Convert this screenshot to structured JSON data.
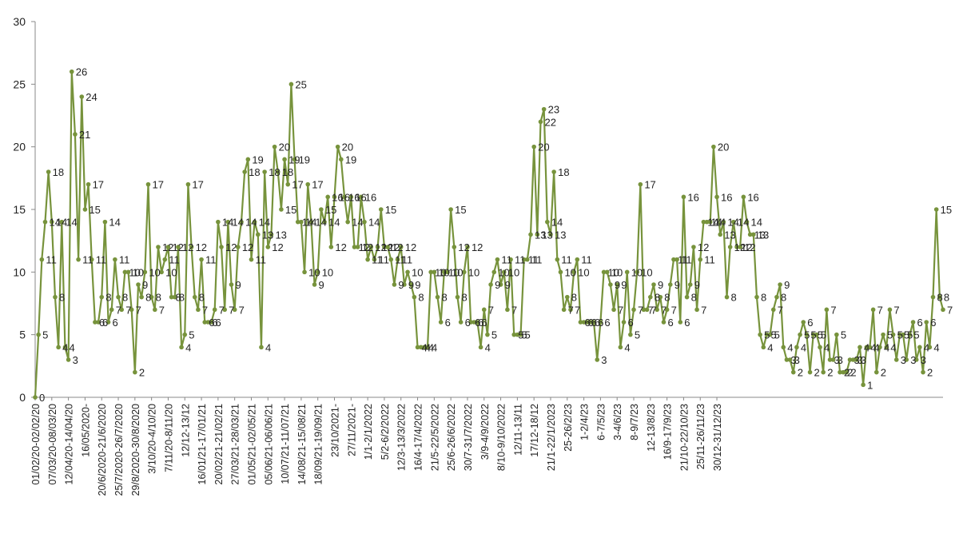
{
  "chart_data": {
    "type": "line",
    "title": "",
    "xlabel": "",
    "ylabel": "",
    "ylim": [
      0,
      30
    ],
    "yticks": [
      "0",
      "5",
      "10",
      "15",
      "20",
      "25",
      "30"
    ],
    "grid": false,
    "legend": "none",
    "series_color": "#77933c",
    "x_tick_labels": [
      "01/02/20-02/02/20",
      "07/03/20-08/03/20",
      "12/04/20-14/04/20",
      "16/05/2020-",
      "20/6/2020-21/6/2020",
      "25/7/2020-26/7/2020",
      "29/8/2020-30/8/2020",
      "3/10/20-4/10/20",
      "7/11/20-8/11/20",
      "12/12-13/12",
      "16/01/21-17/01/21",
      "20/02/21-21/02/21",
      "27/03/21-28/03/21",
      "01/05/21-02/05/21",
      "05/06/21-06/06/21",
      "10/07/21-11/07/21",
      "14/08/21-15/08/21",
      "18/09/21-19/09/21",
      "23/10/2021-",
      "27/11/2021-",
      "1/1-2/1/2022",
      "5/2-6/2/2022",
      "12/3-13/3/2022",
      "16/4-17/4/2022",
      "21/5-22/5/2022",
      "25/6-26/6/2022",
      "30/7-31/7/2022",
      "3/9-4/9/2022",
      "8/10-9/10/2022",
      "12/11-13/11",
      "17/12-18/12",
      "21/1-22/1/2023",
      "25-26/2/23",
      "1-2/4/23",
      "6-7/5/23",
      "3-4/6/23",
      "8-9/7/23",
      "12-13/8/23",
      "16/9-17/9/23",
      "21/10-22/10/23",
      "25/11-26/11/23",
      "30/12-31/12/23"
    ],
    "x_tick_every": 5,
    "values": [
      0,
      5,
      11,
      14,
      18,
      14,
      8,
      4,
      14,
      4,
      3,
      26,
      21,
      11,
      24,
      15,
      17,
      11,
      6,
      6,
      8,
      14,
      6,
      7,
      11,
      8,
      7,
      10,
      10,
      7,
      2,
      9,
      8,
      10,
      17,
      8,
      7,
      12,
      10,
      11,
      12,
      8,
      8,
      12,
      4,
      5,
      17,
      12,
      8,
      7,
      11,
      6,
      6,
      6,
      7,
      14,
      12,
      7,
      14,
      9,
      7,
      12,
      14,
      18,
      19,
      11,
      14,
      13,
      4,
      18,
      12,
      13,
      20,
      18,
      15,
      19,
      17,
      25,
      19,
      14,
      14,
      10,
      17,
      14,
      9,
      10,
      15,
      14,
      16,
      12,
      16,
      20,
      19,
      16,
      14,
      16,
      12,
      12,
      16,
      14,
      11,
      12,
      11,
      12,
      15,
      12,
      12,
      11,
      9,
      11,
      12,
      9,
      10,
      9,
      8,
      4,
      4,
      4,
      4,
      10,
      10,
      8,
      6,
      10,
      10,
      15,
      12,
      8,
      6,
      10,
      12,
      6,
      6,
      6,
      4,
      7,
      5,
      9,
      10,
      11,
      9,
      10,
      7,
      11,
      5,
      5,
      5,
      11,
      11,
      13,
      20,
      13,
      22,
      23,
      14,
      13,
      18,
      11,
      10,
      7,
      8,
      7,
      10,
      11,
      6,
      6,
      6,
      6,
      6,
      3,
      6,
      10,
      10,
      9,
      7,
      9,
      4,
      6,
      10,
      5,
      7,
      10,
      17,
      7,
      7,
      8,
      9,
      7,
      8,
      6,
      7,
      9,
      11,
      11,
      6,
      16,
      8,
      9,
      12,
      7,
      11,
      14,
      14,
      14,
      20,
      16,
      13,
      14,
      8,
      12,
      14,
      12,
      12,
      16,
      14,
      13,
      13,
      8,
      5,
      4,
      5,
      5,
      7,
      8,
      9,
      4,
      3,
      3,
      2,
      4,
      5,
      6,
      5,
      2,
      5,
      5,
      4,
      2,
      7,
      3,
      3,
      5,
      2,
      2,
      2,
      3,
      3,
      3,
      4,
      1,
      4,
      4,
      7,
      2,
      4,
      5,
      4,
      7,
      5,
      3,
      5,
      5,
      3,
      5,
      6,
      3,
      4,
      2,
      6,
      4,
      8,
      15,
      8,
      7
    ]
  }
}
